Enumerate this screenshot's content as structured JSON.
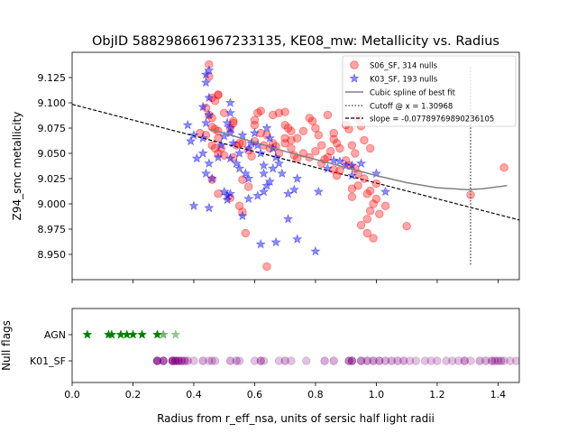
{
  "chart_data": [
    {
      "type": "scatter",
      "title": "ObjID 588298661967233135, KE08_mw: Metallicity vs. Radius",
      "xlabel": "",
      "ylabel": "Z94_smc metallicity",
      "xlim": [
        0.0,
        1.47
      ],
      "ylim": [
        8.925,
        9.15
      ],
      "xticks": [
        "0.0",
        "0.2",
        "0.4",
        "0.6",
        "0.8",
        "1.0",
        "1.2",
        "1.4"
      ],
      "xtick_values": [
        0.0,
        0.2,
        0.4,
        0.6,
        0.8,
        1.0,
        1.2,
        1.4
      ],
      "show_xticklabels": false,
      "yticks": [
        "8.950",
        "8.975",
        "9.000",
        "9.025",
        "9.050",
        "9.075",
        "9.100",
        "9.125"
      ],
      "ytick_values": [
        8.95,
        8.975,
        9.0,
        9.025,
        9.05,
        9.075,
        9.1,
        9.125
      ],
      "grid": false,
      "legend_position": "top-right",
      "legend": [
        {
          "label": "S06_SF, 314 nulls",
          "marker": "circle",
          "color": "#ff0000"
        },
        {
          "label": "K03_SF, 193 nulls",
          "marker": "star",
          "color": "#0000ff"
        },
        {
          "label": "Cubic spline of best fit",
          "line": "solid",
          "color": "#808080"
        },
        {
          "label": "Cutoff @ x = 1.30968",
          "line": "dotted",
          "color": "#555555"
        },
        {
          "label": "slope = -0.07789769890236105",
          "line": "dashed",
          "color": "#000000"
        }
      ],
      "series": [
        {
          "name": "S06_SF, 314 nulls",
          "marker": "circle",
          "color": "#ff0000",
          "points": [
            [
              0.45,
              9.138
            ],
            [
              0.45,
              9.126
            ],
            [
              0.46,
              9.105
            ],
            [
              0.47,
              9.102
            ],
            [
              0.48,
              9.108
            ],
            [
              0.48,
              9.108
            ],
            [
              0.44,
              9.095
            ],
            [
              0.45,
              9.088
            ],
            [
              0.46,
              9.085
            ],
            [
              0.5,
              9.09
            ],
            [
              0.53,
              9.082
            ],
            [
              0.53,
              9.08
            ],
            [
              0.52,
              9.075
            ],
            [
              0.46,
              9.076
            ],
            [
              0.47,
              9.074
            ],
            [
              0.48,
              9.072
            ],
            [
              0.42,
              9.07
            ],
            [
              0.44,
              9.068
            ],
            [
              0.48,
              9.065
            ],
            [
              0.46,
              9.058
            ],
            [
              0.47,
              9.055
            ],
            [
              0.49,
              9.055
            ],
            [
              0.48,
              9.05
            ],
            [
              0.5,
              9.048
            ],
            [
              0.54,
              9.058
            ],
            [
              0.55,
              9.06
            ],
            [
              0.56,
              9.06
            ],
            [
              0.53,
              9.046
            ],
            [
              0.58,
              9.053
            ],
            [
              0.59,
              9.047
            ],
            [
              0.6,
              9.083
            ],
            [
              0.61,
              9.09
            ],
            [
              0.62,
              9.092
            ],
            [
              0.6,
              9.078
            ],
            [
              0.62,
              9.07
            ],
            [
              0.64,
              9.068
            ],
            [
              0.6,
              9.062
            ],
            [
              0.63,
              9.058
            ],
            [
              0.65,
              9.055
            ],
            [
              0.66,
              9.06
            ],
            [
              0.67,
              9.057
            ],
            [
              0.68,
              9.05
            ],
            [
              0.66,
              9.088
            ],
            [
              0.68,
              9.09
            ],
            [
              0.7,
              9.091
            ],
            [
              0.7,
              9.078
            ],
            [
              0.71,
              9.075
            ],
            [
              0.72,
              9.072
            ],
            [
              0.7,
              9.065
            ],
            [
              0.7,
              9.06
            ],
            [
              0.72,
              9.063
            ],
            [
              0.74,
              9.065
            ],
            [
              0.72,
              9.055
            ],
            [
              0.73,
              9.048
            ],
            [
              0.74,
              9.045
            ],
            [
              0.76,
              9.05
            ],
            [
              0.76,
              9.072
            ],
            [
              0.78,
              9.085
            ],
            [
              0.79,
              9.082
            ],
            [
              0.8,
              9.075
            ],
            [
              0.81,
              9.068
            ],
            [
              0.82,
              9.058
            ],
            [
              0.8,
              9.052
            ],
            [
              0.78,
              9.046
            ],
            [
              0.83,
              9.044
            ],
            [
              0.84,
              9.088
            ],
            [
              0.86,
              9.07
            ],
            [
              0.86,
              9.064
            ],
            [
              0.87,
              9.06
            ],
            [
              0.88,
              9.055
            ],
            [
              0.85,
              9.052
            ],
            [
              0.84,
              9.046
            ],
            [
              0.82,
              9.04
            ],
            [
              0.86,
              9.034
            ],
            [
              0.87,
              9.028
            ],
            [
              0.88,
              9.033
            ],
            [
              0.9,
              9.078
            ],
            [
              0.91,
              9.074
            ],
            [
              0.92,
              9.058
            ],
            [
              0.93,
              9.05
            ],
            [
              0.94,
              9.085
            ],
            [
              0.95,
              9.077
            ],
            [
              0.96,
              9.063
            ],
            [
              0.98,
              9.055
            ],
            [
              0.9,
              9.043
            ],
            [
              0.91,
              9.038
            ],
            [
              0.93,
              9.035
            ],
            [
              0.94,
              9.03
            ],
            [
              0.96,
              9.025
            ],
            [
              0.97,
              9.01
            ],
            [
              0.92,
              9.015
            ],
            [
              0.94,
              9.018
            ],
            [
              0.92,
              9.007
            ],
            [
              0.98,
              9.013
            ],
            [
              0.98,
              8.993
            ],
            [
              0.99,
              9.0
            ],
            [
              0.97,
              8.985
            ],
            [
              0.95,
              8.979
            ],
            [
              0.97,
              8.971
            ],
            [
              0.99,
              8.966
            ],
            [
              1.0,
              9.02
            ],
            [
              1.0,
              9.005
            ],
            [
              1.01,
              8.99
            ],
            [
              1.03,
              8.998
            ],
            [
              1.1,
              8.978
            ],
            [
              0.46,
              9.024
            ],
            [
              0.48,
              9.01
            ],
            [
              0.52,
              9.006
            ],
            [
              0.56,
              9.024
            ],
            [
              0.58,
              9.017
            ],
            [
              0.55,
              8.998
            ],
            [
              0.56,
              8.992
            ],
            [
              0.57,
              8.971
            ],
            [
              0.64,
              8.938
            ],
            [
              1.31,
              9.009
            ],
            [
              1.42,
              9.036
            ]
          ]
        },
        {
          "name": "K03_SF, 193 nulls",
          "marker": "star",
          "color": "#0000ff",
          "points": [
            [
              0.44,
              9.128
            ],
            [
              0.45,
              9.132
            ],
            [
              0.44,
              9.12
            ],
            [
              0.45,
              9.105
            ],
            [
              0.43,
              9.096
            ],
            [
              0.45,
              9.088
            ],
            [
              0.44,
              9.08
            ],
            [
              0.38,
              9.078
            ],
            [
              0.4,
              9.068
            ],
            [
              0.43,
              9.065
            ],
            [
              0.39,
              9.062
            ],
            [
              0.41,
              9.045
            ],
            [
              0.43,
              9.05
            ],
            [
              0.45,
              9.04
            ],
            [
              0.44,
              9.03
            ],
            [
              0.46,
              9.025
            ],
            [
              0.48,
              9.046
            ],
            [
              0.49,
              9.058
            ],
            [
              0.5,
              9.067
            ],
            [
              0.52,
              9.07
            ],
            [
              0.52,
              9.1
            ],
            [
              0.52,
              9.09
            ],
            [
              0.51,
              9.08
            ],
            [
              0.52,
              9.075
            ],
            [
              0.53,
              9.06
            ],
            [
              0.52,
              9.045
            ],
            [
              0.54,
              9.04
            ],
            [
              0.55,
              9.035
            ],
            [
              0.57,
              9.03
            ],
            [
              0.58,
              9.025
            ],
            [
              0.55,
              9.05
            ],
            [
              0.56,
              9.068
            ],
            [
              0.58,
              9.055
            ],
            [
              0.59,
              9.06
            ],
            [
              0.6,
              9.07
            ],
            [
              0.61,
              9.058
            ],
            [
              0.62,
              9.05
            ],
            [
              0.63,
              9.038
            ],
            [
              0.63,
              9.03
            ],
            [
              0.64,
              9.075
            ],
            [
              0.65,
              9.065
            ],
            [
              0.66,
              9.055
            ],
            [
              0.67,
              9.046
            ],
            [
              0.68,
              9.04
            ],
            [
              0.69,
              9.03
            ],
            [
              0.52,
              9.01
            ],
            [
              0.5,
              9.012
            ],
            [
              0.51,
              9.008
            ],
            [
              0.51,
              9.004
            ],
            [
              0.4,
              8.998
            ],
            [
              0.45,
              8.996
            ],
            [
              0.56,
              8.988
            ],
            [
              0.58,
              9.005
            ],
            [
              0.61,
              9.008
            ],
            [
              0.63,
              9.012
            ],
            [
              0.64,
              9.018
            ],
            [
              0.65,
              9.022
            ],
            [
              0.66,
              9.035
            ],
            [
              0.71,
              9.01
            ],
            [
              0.73,
              9.014
            ],
            [
              0.74,
              9.025
            ],
            [
              0.71,
              8.985
            ],
            [
              0.62,
              8.96
            ],
            [
              0.67,
              8.962
            ],
            [
              0.74,
              8.965
            ],
            [
              0.8,
              8.953
            ],
            [
              0.81,
              9.012
            ],
            [
              0.84,
              9.035
            ],
            [
              0.86,
              9.043
            ],
            [
              0.88,
              9.042
            ],
            [
              0.9,
              9.038
            ],
            [
              0.92,
              9.028
            ],
            [
              0.92,
              9.038
            ],
            [
              0.95,
              9.04
            ],
            [
              1.0,
              9.03
            ],
            [
              1.03,
              9.012
            ]
          ]
        }
      ],
      "spline": {
        "name": "Cubic spline of best fit",
        "color": "#808080",
        "points": [
          [
            0.45,
            9.074
          ],
          [
            0.5,
            9.07
          ],
          [
            0.6,
            9.061
          ],
          [
            0.7,
            9.052
          ],
          [
            0.8,
            9.044
          ],
          [
            0.9,
            9.036
          ],
          [
            1.0,
            9.028
          ],
          [
            1.1,
            9.021
          ],
          [
            1.2,
            9.016
          ],
          [
            1.3,
            9.014
          ],
          [
            1.35,
            9.015
          ],
          [
            1.43,
            9.018
          ]
        ]
      },
      "cutoff": {
        "name": "Cutoff @ x = 1.30968",
        "x": 1.30968,
        "y_range": [
          8.94,
          9.135
        ]
      },
      "fit_line": {
        "name": "slope = -0.07789769890236105",
        "slope": -0.07789769890236105,
        "intercept": 9.0985
      }
    },
    {
      "type": "scatter",
      "title": "",
      "xlabel": "Radius from r_eff_nsa, units of sersic half light radii",
      "ylabel": "Null flags",
      "xlim": [
        0.0,
        1.47
      ],
      "xticks": [
        "0.0",
        "0.2",
        "0.4",
        "0.6",
        "0.8",
        "1.0",
        "1.2",
        "1.4"
      ],
      "xtick_values": [
        0.0,
        0.2,
        0.4,
        0.6,
        0.8,
        1.0,
        1.2,
        1.4
      ],
      "categories": [
        "K01_SF",
        "AGN"
      ],
      "grid": false,
      "series": [
        {
          "name": "AGN",
          "marker": "star",
          "color": "#008000",
          "x": [
            0.05,
            0.12,
            0.13,
            0.16,
            0.18,
            0.2,
            0.23,
            0.28,
            0.3,
            0.34
          ],
          "alpha": [
            1,
            1,
            1,
            1,
            1,
            1,
            1,
            1,
            0.55,
            0.4
          ]
        },
        {
          "name": "K01_SF",
          "marker": "circle",
          "color": "#800080",
          "x": [
            0.28,
            0.3,
            0.33,
            0.34,
            0.35,
            0.36,
            0.37,
            0.38,
            0.4,
            0.43,
            0.45,
            0.46,
            0.47,
            0.52,
            0.54,
            0.55,
            0.6,
            0.62,
            0.63,
            0.68,
            0.7,
            0.72,
            0.77,
            0.83,
            0.86,
            0.91,
            0.92,
            0.95,
            0.97,
            0.99,
            1.01,
            1.03,
            1.05,
            1.07,
            1.09,
            1.11,
            1.13,
            1.16,
            1.18,
            1.2,
            1.23,
            1.25,
            1.27,
            1.29,
            1.31,
            1.34,
            1.36,
            1.38,
            1.39,
            1.4,
            1.41,
            1.42,
            1.44,
            1.46
          ],
          "alpha": [
            0.9,
            0.8,
            0.9,
            0.8,
            0.7,
            0.6,
            0.5,
            0.4,
            0.3,
            0.4,
            0.3,
            0.3,
            0.3,
            0.4,
            0.4,
            0.3,
            0.3,
            0.5,
            0.3,
            0.3,
            0.4,
            0.3,
            0.3,
            0.4,
            0.4,
            0.6,
            0.7,
            0.6,
            0.5,
            0.5,
            0.5,
            0.4,
            0.4,
            0.4,
            0.4,
            0.3,
            0.3,
            0.3,
            0.3,
            0.3,
            0.3,
            0.3,
            0.3,
            0.5,
            0.3,
            0.4,
            0.4,
            0.5,
            0.4,
            0.4,
            0.4,
            0.3,
            0.3,
            0.3
          ]
        }
      ]
    }
  ]
}
